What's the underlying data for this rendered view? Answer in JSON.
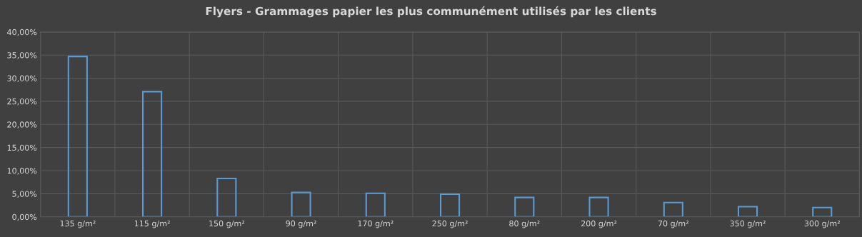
{
  "chart_data": {
    "type": "bar",
    "title": "Flyers - Grammages papier les plus communément utilisés par les clients",
    "categories": [
      "135 g/m²",
      "115 g/m²",
      "150 g/m²",
      "90 g/m²",
      "170 g/m²",
      "250 g/m²",
      "80 g/m²",
      "200 g/m²",
      "70 g/m²",
      "350 g/m²",
      "300 g/m²"
    ],
    "values": [
      34.7,
      27.1,
      8.3,
      5.3,
      5.1,
      4.9,
      4.2,
      4.2,
      3.1,
      2.2,
      2.0
    ],
    "color": "#5b9bd5",
    "ylim": [
      0,
      40
    ],
    "yticks": [
      {
        "value": 0,
        "label": "0,00%"
      },
      {
        "value": 5,
        "label": "5,00%"
      },
      {
        "value": 10,
        "label": "10,00%"
      },
      {
        "value": 15,
        "label": "15,00%"
      },
      {
        "value": 20,
        "label": "20,00%"
      },
      {
        "value": 25,
        "label": "25,00%"
      },
      {
        "value": 30,
        "label": "30,00%"
      },
      {
        "value": 35,
        "label": "35,00%"
      },
      {
        "value": 40,
        "label": "40,00%"
      }
    ],
    "grid": true,
    "legend": false
  }
}
